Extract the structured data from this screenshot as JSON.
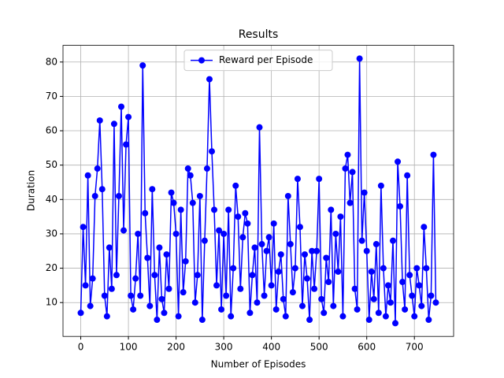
{
  "chart_data": {
    "type": "line",
    "title": "Results",
    "xlabel": "Number of Episodes",
    "ylabel": "Duration",
    "x": [
      0,
      5,
      10,
      15,
      20,
      25,
      30,
      35,
      40,
      45,
      50,
      55,
      60,
      65,
      70,
      75,
      80,
      85,
      90,
      95,
      100,
      105,
      110,
      115,
      120,
      125,
      130,
      135,
      140,
      145,
      150,
      155,
      160,
      165,
      170,
      175,
      180,
      185,
      190,
      195,
      200,
      205,
      210,
      215,
      220,
      225,
      230,
      235,
      240,
      245,
      250,
      255,
      260,
      265,
      270,
      275,
      280,
      285,
      290,
      295,
      300,
      305,
      310,
      315,
      320,
      325,
      330,
      335,
      340,
      345,
      350,
      355,
      360,
      365,
      370,
      375,
      380,
      385,
      390,
      395,
      400,
      405,
      410,
      415,
      420,
      425,
      430,
      435,
      440,
      445,
      450,
      455,
      460,
      465,
      470,
      475,
      480,
      485,
      490,
      495,
      500,
      505,
      510,
      515,
      520,
      525,
      530,
      535,
      540,
      545,
      550,
      555,
      560,
      565,
      570,
      575,
      580,
      585,
      590,
      595,
      600,
      605,
      610,
      615,
      620,
      625,
      630,
      635,
      640,
      645,
      650,
      655,
      660,
      665,
      670,
      675,
      680,
      685,
      690,
      695,
      700,
      705,
      710,
      715,
      720,
      725,
      730,
      735,
      740,
      745
    ],
    "series": [
      {
        "name": "Reward per Episode",
        "color": "#0000ff",
        "values": [
          7,
          32,
          15,
          47,
          9,
          17,
          41,
          49,
          63,
          43,
          12,
          6,
          26,
          14,
          62,
          18,
          41,
          67,
          31,
          56,
          64,
          12,
          8,
          17,
          30,
          12,
          79,
          36,
          23,
          9,
          43,
          18,
          5,
          26,
          11,
          7,
          24,
          14,
          42,
          39,
          30,
          6,
          37,
          13,
          22,
          49,
          47,
          39,
          10,
          18,
          41,
          5,
          28,
          49,
          75,
          54,
          37,
          15,
          31,
          8,
          30,
          12,
          37,
          6,
          20,
          44,
          35,
          14,
          29,
          36,
          33,
          7,
          18,
          26,
          10,
          61,
          27,
          12,
          25,
          29,
          15,
          33,
          8,
          19,
          24,
          11,
          6,
          41,
          27,
          13,
          20,
          46,
          32,
          9,
          24,
          17,
          5,
          25,
          14,
          25,
          46,
          11,
          7,
          23,
          16,
          37,
          9,
          30,
          19,
          35,
          6,
          49,
          53,
          39,
          48,
          14,
          8,
          81,
          28,
          42,
          25,
          5,
          19,
          11,
          27,
          7,
          44,
          20,
          6,
          15,
          10,
          28,
          4,
          51,
          38,
          16,
          8,
          47,
          18,
          12,
          6,
          20,
          15,
          9,
          32,
          20,
          5,
          12,
          53,
          10
        ]
      }
    ],
    "xlim": [
      -37.25,
      782.25
    ],
    "ylim": [
      0.15,
      84.85
    ],
    "xticks": [
      0,
      100,
      200,
      300,
      400,
      500,
      600,
      700
    ],
    "yticks": [
      10,
      20,
      30,
      40,
      50,
      60,
      70,
      80
    ],
    "grid": true,
    "legend": "upper center"
  }
}
